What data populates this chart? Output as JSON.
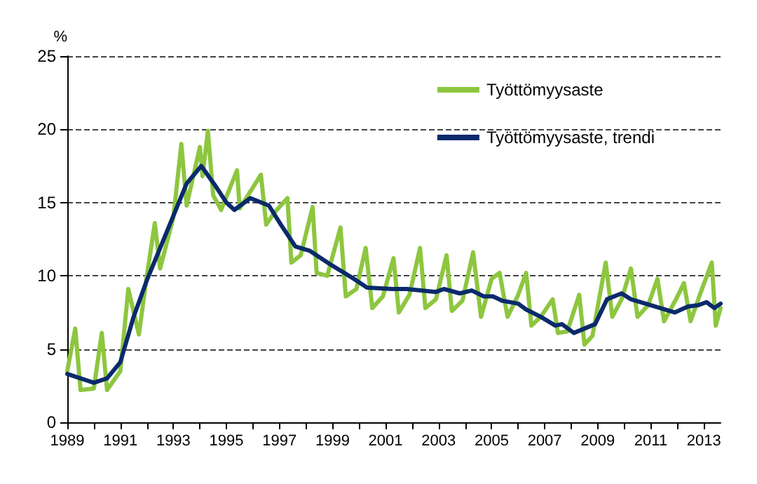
{
  "chart_data": {
    "type": "line",
    "ylabel": "%",
    "xlim": [
      1989,
      2013.63
    ],
    "ylim": [
      0,
      25
    ],
    "yticks": [
      0,
      5,
      10,
      15,
      20,
      25
    ],
    "xticks": [
      1989,
      {
        "value": 1990,
        "label": null
      },
      1991,
      {
        "value": 1992,
        "label": null
      },
      1993,
      {
        "value": 1994,
        "label": null
      },
      1995,
      {
        "value": 1996,
        "label": null
      },
      1997,
      {
        "value": 1998,
        "label": null
      },
      1999,
      {
        "value": 2000,
        "label": null
      },
      2001,
      {
        "value": 2002,
        "label": null
      },
      2003,
      {
        "value": 2004,
        "label": null
      },
      2005,
      {
        "value": 2006,
        "label": null
      },
      2007,
      {
        "value": 2008,
        "label": null
      },
      2009,
      {
        "value": 2010,
        "label": null
      },
      2011,
      {
        "value": 2012,
        "label": null
      },
      2013
    ],
    "grid": "y",
    "legend": "top right",
    "marker": "none",
    "series": [
      {
        "name": "Työttömyysaste",
        "color": "#8dc63f",
        "x": [
          1989,
          1989.3,
          1989.5,
          1990,
          1990.3,
          1990.5,
          1991,
          1991.3,
          1991.7,
          1992,
          1992.3,
          1992.5,
          1993,
          1993.3,
          1993.5,
          1994,
          1994.1,
          1994.3,
          1994.5,
          1994.8,
          1995.4,
          1995.5,
          1996.3,
          1996.5,
          1996.8,
          1997.3,
          1997.45,
          1997.8,
          1998.25,
          1998.4,
          1998.8,
          1999.3,
          1999.5,
          1999.9,
          2000.25,
          2000.5,
          2000.9,
          2001.3,
          2001.5,
          2001.9,
          2002.3,
          2002.5,
          2002.9,
          2003.3,
          2003.5,
          2003.9,
          2004.3,
          2004.6,
          2005,
          2005.3,
          2005.6,
          2006,
          2006.3,
          2006.5,
          2006.85,
          2007.3,
          2007.5,
          2007.85,
          2008.3,
          2008.5,
          2008.8,
          2009.3,
          2009.55,
          2009.9,
          2010.25,
          2010.5,
          2010.9,
          2011.25,
          2011.5,
          2011.95,
          2012.25,
          2012.5,
          2012.85,
          2013.3,
          2013.45,
          2013.63
        ],
        "values": [
          3.5,
          6.4,
          2.2,
          2.3,
          6.1,
          2.2,
          3.5,
          9.1,
          6,
          10,
          13.6,
          10.5,
          14,
          19,
          14.8,
          18.8,
          16.8,
          19.9,
          15.5,
          14.5,
          17.2,
          14.6,
          16.9,
          13.5,
          14.3,
          15.3,
          10.9,
          11.4,
          14.7,
          10.2,
          10,
          13.3,
          8.6,
          9.1,
          11.9,
          7.8,
          8.6,
          11.2,
          7.5,
          8.7,
          11.9,
          7.8,
          8.4,
          11.4,
          7.6,
          8.3,
          11.6,
          7.2,
          9.8,
          10.2,
          7.2,
          8.7,
          10.2,
          6.6,
          7.2,
          8.4,
          6.1,
          6.2,
          8.7,
          5.3,
          5.9,
          10.9,
          7.2,
          8.4,
          10.5,
          7.2,
          8,
          9.8,
          6.9,
          8.4,
          9.5,
          6.9,
          8.7,
          10.9,
          6.6,
          7.8
        ]
      },
      {
        "name": "Työttömyysaste, trendi",
        "color": "#0a2a6b",
        "x": [
          1989,
          1990,
          1990.5,
          1991,
          1991.5,
          1992,
          1992.5,
          1993,
          1993.5,
          1994.05,
          1994.6,
          1995,
          1995.3,
          1995.9,
          1996.6,
          1997.05,
          1997.6,
          1998.15,
          1998.9,
          1999.8,
          2000.3,
          2001.25,
          2001.8,
          2002.9,
          2003.2,
          2003.8,
          2004.25,
          2004.7,
          2005.05,
          2005.4,
          2006,
          2006.3,
          2006.85,
          2007.4,
          2007.65,
          2008.1,
          2008.5,
          2008.9,
          2009.35,
          2009.9,
          2010.25,
          2010.8,
          2011.35,
          2011.9,
          2012.4,
          2012.8,
          2013.1,
          2013.4,
          2013.63
        ],
        "values": [
          3.3,
          2.7,
          3,
          4.1,
          7.2,
          9.7,
          11.9,
          14.1,
          16.3,
          17.5,
          16.1,
          15,
          14.5,
          15.3,
          14.8,
          13.5,
          12,
          11.7,
          10.8,
          9.8,
          9.2,
          9.1,
          9.1,
          8.9,
          9.1,
          8.8,
          9,
          8.6,
          8.6,
          8.3,
          8.1,
          7.7,
          7.2,
          6.6,
          6.7,
          6.1,
          6.4,
          6.7,
          8.4,
          8.8,
          8.4,
          8.1,
          7.8,
          7.5,
          7.9,
          8,
          8.2,
          7.8,
          8.1
        ]
      }
    ]
  }
}
